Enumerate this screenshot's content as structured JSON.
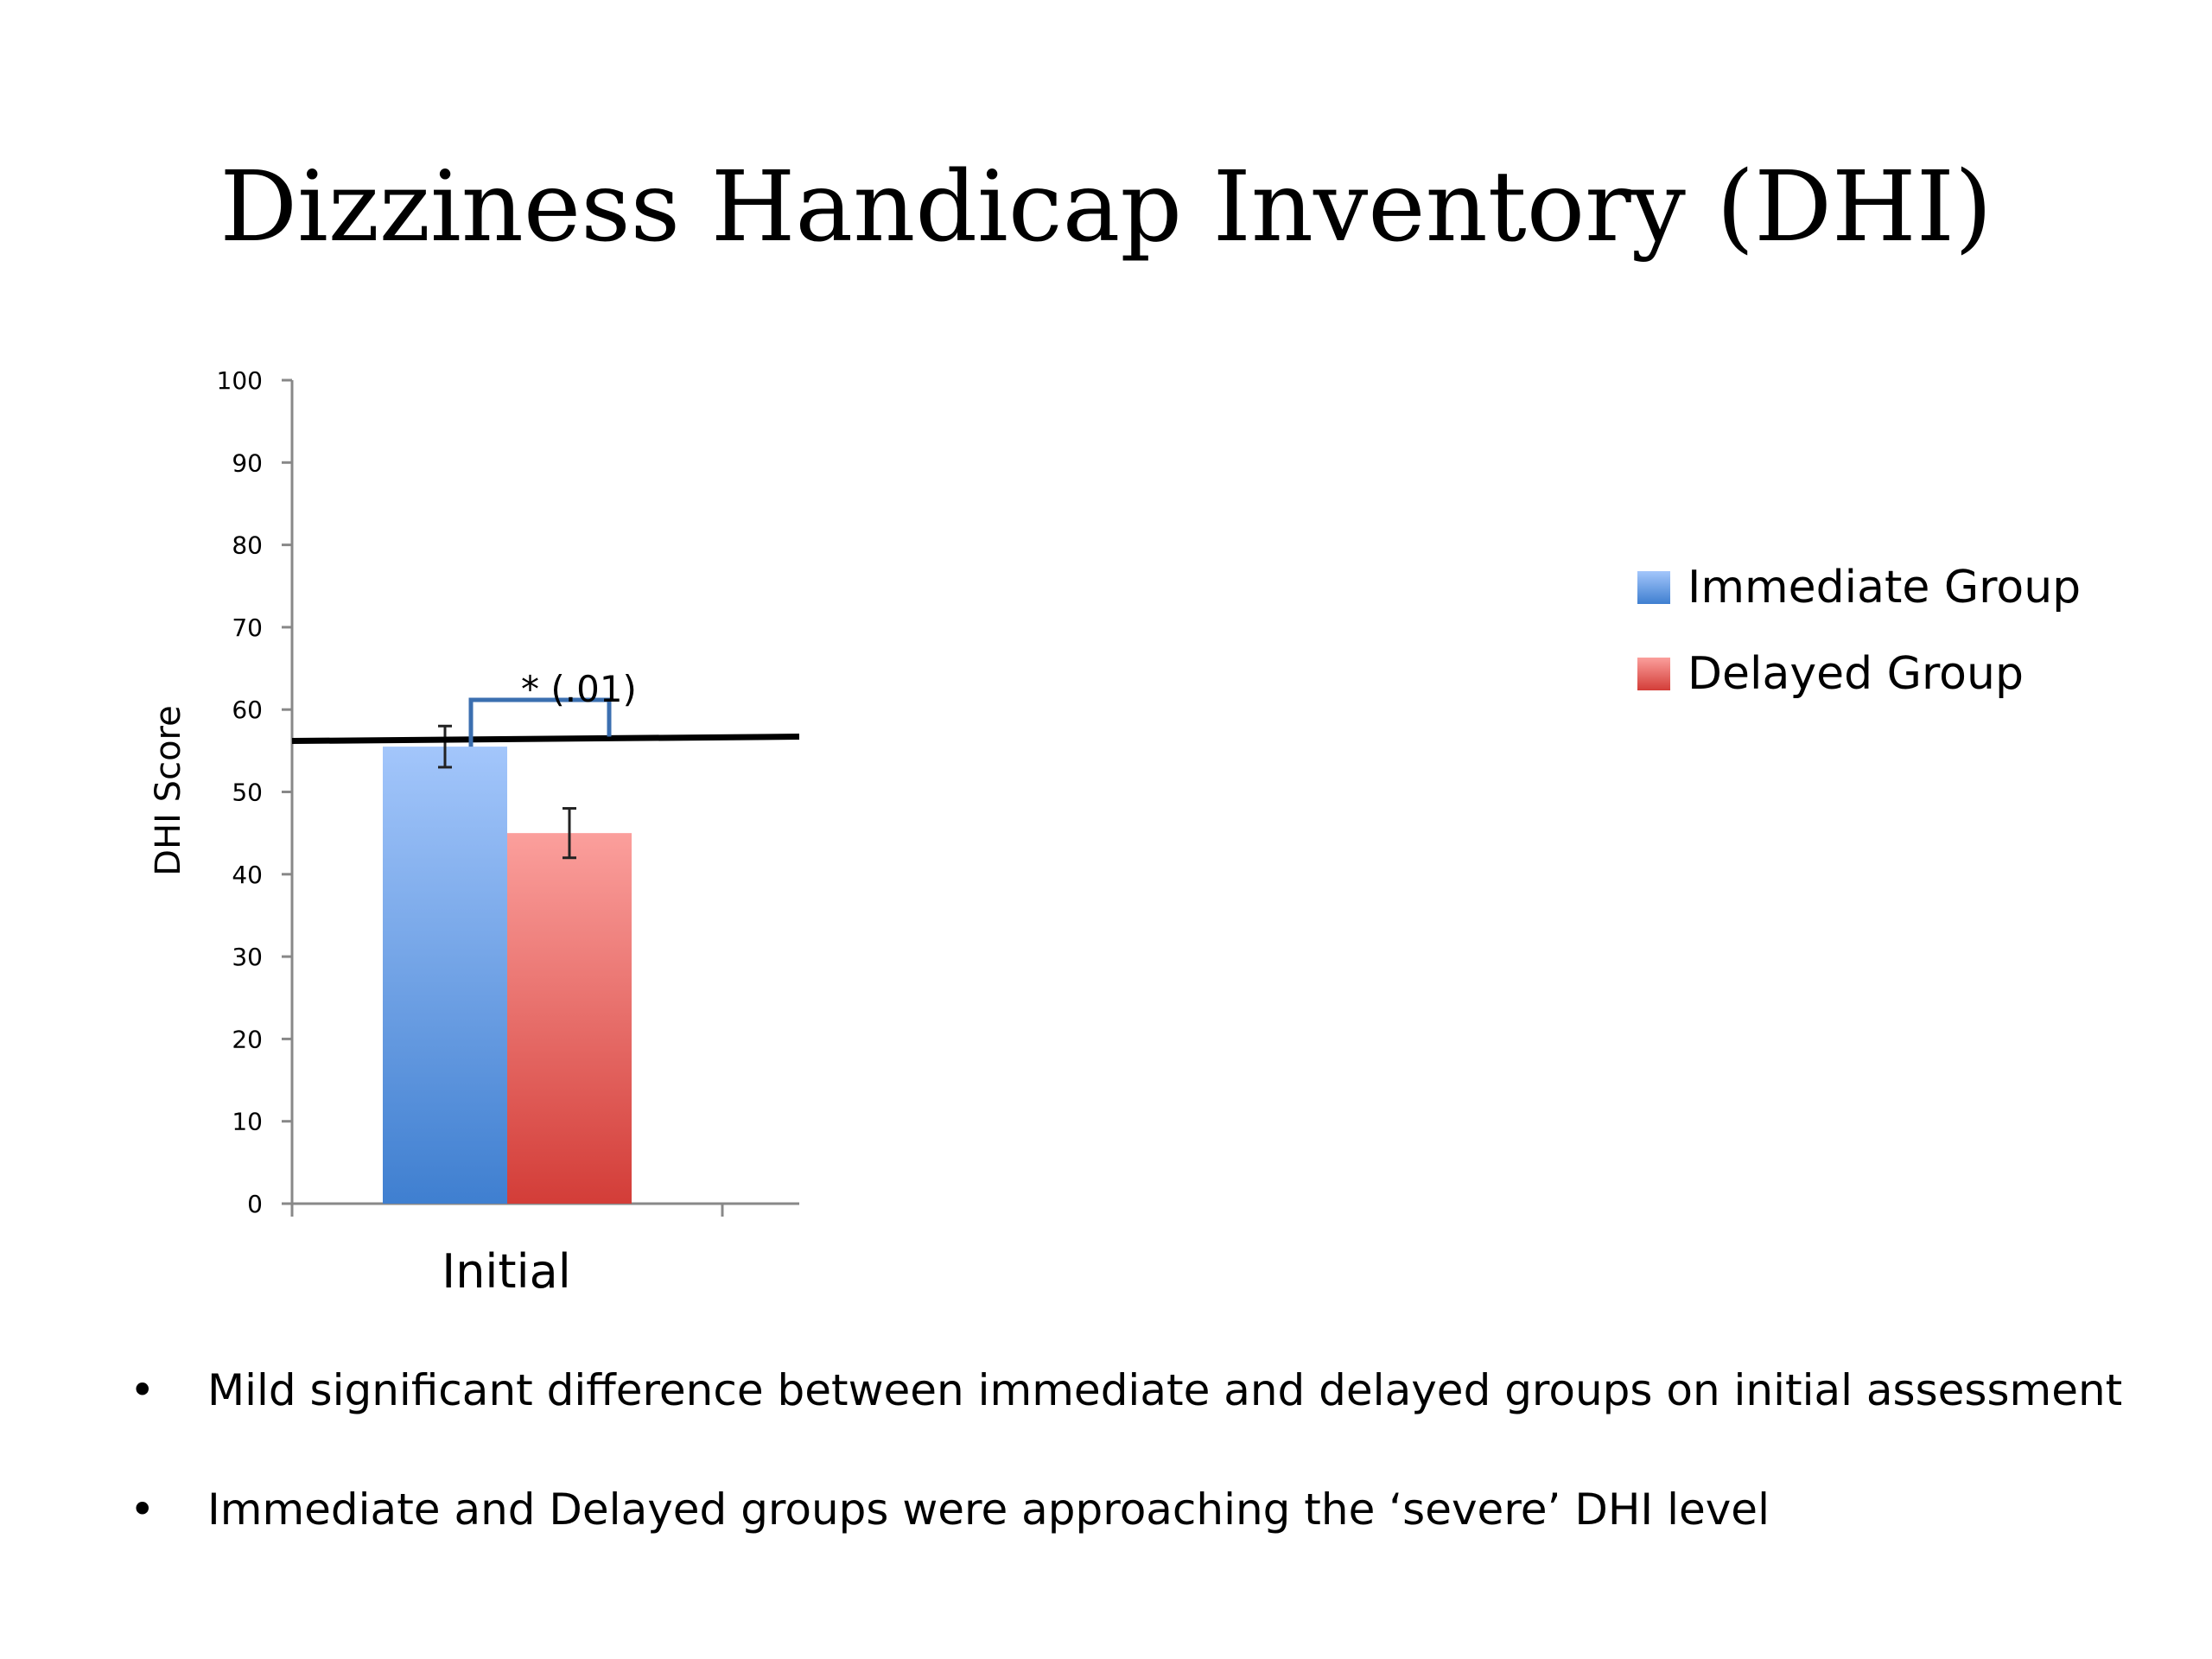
{
  "title": "Dizziness Handicap Inventory (DHI)",
  "chart_data": {
    "type": "bar",
    "categories": [
      "Initial"
    ],
    "series": [
      {
        "name": "Immediate Group",
        "values": [
          55.5
        ],
        "error": [
          2.5
        ],
        "color": "#4a86d8"
      },
      {
        "name": "Delayed Group",
        "values": [
          45
        ],
        "error": [
          3
        ],
        "color": "#de4a45"
      }
    ],
    "ylabel": "DHI Score",
    "xlabel": "",
    "ylim": [
      0,
      100
    ],
    "yticks": [
      0,
      10,
      20,
      30,
      40,
      50,
      60,
      70,
      80,
      90,
      100
    ],
    "reference_line": 56.5,
    "annotation": "* (.01)",
    "legend_position": "right"
  },
  "bullets": [
    "Mild significant difference between immediate and delayed groups on initial assessment",
    "Immediate and Delayed groups were approaching the ‘severe’ DHI level"
  ]
}
